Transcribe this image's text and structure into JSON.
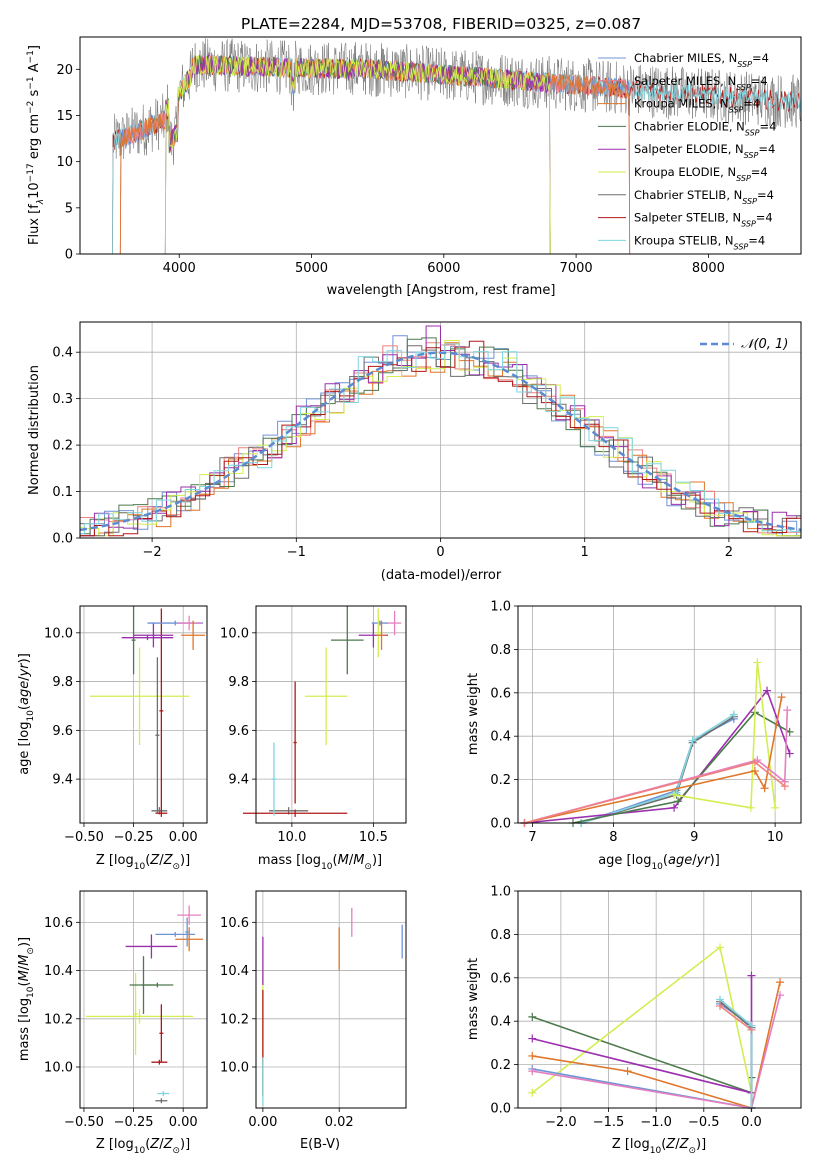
{
  "page_title": "PLATE=2284, MJD=53708, FIBERID=0325, z=0.087",
  "colors": {
    "chabrier_miles": "#6f94d6",
    "salpeter_miles": "#f07f7f",
    "kroupa_miles": "#e0762a",
    "chabrier_elodie": "#4d7a4d",
    "salpeter_elodie": "#9b2fae",
    "kroupa_elodie": "#d2ee50",
    "chabrier_stelib": "#6e6e6e",
    "salpeter_stelib": "#b01818",
    "kroupa_stelib": "#7fd6e0",
    "pink": "#e57fbf",
    "normal": "#5b8bd0"
  },
  "chart_data": [
    {
      "id": "spectrum",
      "type": "line",
      "title": "PLATE=2284, MJD=53708, FIBERID=0325, z=0.087",
      "xlabel": "wavelength [Angstrom, rest frame]",
      "ylabel": "Flux [f_λ 10^-17 erg cm^-2 s^-1 A^-1]",
      "xlim": [
        3250,
        8700
      ],
      "ylim": [
        0,
        23.5
      ],
      "xticks": [
        "4000",
        "5000",
        "6000",
        "7000",
        "8000"
      ],
      "yticks": [
        "0",
        "5",
        "10",
        "15",
        "20"
      ],
      "data_range": [
        3500,
        8700
      ],
      "series": [
        {
          "name": "Chabrier MILES, N_SSP=4",
          "range": [
            3560,
            7400
          ]
        },
        {
          "name": "Salpeter MILES, N_SSP=4",
          "range": [
            3560,
            7400
          ]
        },
        {
          "name": "Kroupa MILES, N_SSP=4",
          "range": [
            3560,
            7400
          ]
        },
        {
          "name": "Chabrier ELODIE, N_SSP=4",
          "range": [
            3900,
            6800
          ]
        },
        {
          "name": "Salpeter ELODIE, N_SSP=4",
          "range": [
            3900,
            6800
          ]
        },
        {
          "name": "Kroupa ELODIE, N_SSP=4",
          "range": [
            3900,
            6800
          ]
        },
        {
          "name": "Chabrier STELIB, N_SSP=4",
          "range": [
            3500,
            8700
          ]
        },
        {
          "name": "Salpeter STELIB, N_SSP=4",
          "range": [
            3500,
            8700
          ]
        },
        {
          "name": "Kroupa STELIB, N_SSP=4",
          "range": [
            3500,
            8700
          ]
        }
      ],
      "legend_location": "upper right"
    },
    {
      "id": "residuals",
      "type": "histogram",
      "xlabel": "(data-model)/error",
      "ylabel": "Normed distribution",
      "xlim": [
        -2.5,
        2.5
      ],
      "ylim": [
        0,
        0.465
      ],
      "xticks": [
        "−2",
        "−1",
        "0",
        "1",
        "2"
      ],
      "yticks": [
        "0.0",
        "0.1",
        "0.2",
        "0.3",
        "0.4"
      ],
      "bin_width": 0.1,
      "series_count": 9,
      "reference_curve": {
        "name": "𝒩(0, 1)",
        "mean": 0,
        "sigma": 1
      },
      "legend_location": "upper right",
      "grid": true
    },
    {
      "id": "age_vs_Z",
      "type": "errorbar",
      "xlabel": "Z [log10(Z/Z⊙)]",
      "ylabel": "age [log10(age/yr)]",
      "xlim": [
        -0.52,
        0.12
      ],
      "ylim": [
        9.22,
        10.11
      ],
      "xticks": [
        "−0.50",
        "−0.25",
        "0.00"
      ],
      "yticks": [
        "9.4",
        "9.6",
        "9.8",
        "10.0"
      ],
      "points": [
        {
          "x": -0.22,
          "y": 9.74,
          "xerr": 0.25,
          "yerr": 0.2,
          "color": "kroupa_elodie"
        },
        {
          "x": -0.12,
          "y": 9.27,
          "xerr": 0.04,
          "yerr": 0.015,
          "color": "chabrier_stelib"
        },
        {
          "x": -0.11,
          "y": 9.26,
          "xerr": 0.03,
          "yerr": 0.015,
          "color": "salpeter_stelib"
        },
        {
          "x": -0.13,
          "y": 9.58,
          "xerr": 0.01,
          "yerr": 0.32,
          "color": "chabrier_stelib"
        },
        {
          "x": -0.11,
          "y": 9.68,
          "xerr": 0.01,
          "yerr": 0.42,
          "color": "salpeter_stelib"
        },
        {
          "x": -0.25,
          "y": 9.97,
          "xerr": 0.01,
          "yerr": 0.14,
          "color": "chabrier_elodie"
        },
        {
          "x": -0.18,
          "y": 9.98,
          "xerr": 0.13,
          "yerr": 0.01,
          "color": "salpeter_elodie"
        },
        {
          "x": -0.15,
          "y": 9.99,
          "xerr": 0.1,
          "yerr": 0.05,
          "color": "salpeter_elodie"
        },
        {
          "x": -0.04,
          "y": 10.04,
          "xerr": 0.14,
          "yerr": 0.01,
          "color": "chabrier_miles"
        },
        {
          "x": 0.03,
          "y": 10.04,
          "xerr": 0.06,
          "yerr": 0.03,
          "color": "pink"
        },
        {
          "x": 0.05,
          "y": 9.99,
          "xerr": 0.06,
          "yerr": 0.06,
          "color": "kroupa_miles"
        }
      ]
    },
    {
      "id": "age_vs_mass",
      "type": "errorbar",
      "xlabel": "mass [log10(M/M⊙)]",
      "ylabel": "",
      "xlim": [
        9.78,
        10.7
      ],
      "ylim": [
        9.22,
        10.11
      ],
      "xticks": [
        "10.0",
        "10.5"
      ],
      "yticks": [
        "9.4",
        "9.6",
        "9.8",
        "10.0"
      ],
      "points": [
        {
          "x": 10.21,
          "y": 9.74,
          "xerr": 0.13,
          "yerr": 0.2,
          "color": "kroupa_elodie"
        },
        {
          "x": 9.98,
          "y": 9.27,
          "xerr": 0.12,
          "yerr": 0.015,
          "color": "chabrier_stelib"
        },
        {
          "x": 10.02,
          "y": 9.26,
          "xerr": 0.32,
          "yerr": 0.015,
          "color": "salpeter_stelib"
        },
        {
          "x": 9.89,
          "y": 9.4,
          "xerr": 0.015,
          "yerr": 0.15,
          "color": "kroupa_stelib"
        },
        {
          "x": 10.02,
          "y": 9.55,
          "xerr": 0.01,
          "yerr": 0.25,
          "color": "salpeter_stelib"
        },
        {
          "x": 10.34,
          "y": 9.97,
          "xerr": 0.1,
          "yerr": 0.14,
          "color": "chabrier_elodie"
        },
        {
          "x": 10.5,
          "y": 9.99,
          "xerr": 0.09,
          "yerr": 0.05,
          "color": "salpeter_elodie"
        },
        {
          "x": 10.54,
          "y": 10.04,
          "xerr": 0.05,
          "yerr": 0.01,
          "color": "chabrier_miles"
        },
        {
          "x": 10.53,
          "y": 10.0,
          "xerr": 0.02,
          "yerr": 0.1,
          "color": "kroupa_elodie"
        },
        {
          "x": 10.55,
          "y": 9.99,
          "xerr": 0.03,
          "yerr": 0.06,
          "color": "kroupa_miles"
        },
        {
          "x": 10.63,
          "y": 10.04,
          "xerr": 0.04,
          "yerr": 0.05,
          "color": "pink"
        }
      ]
    },
    {
      "id": "weight_vs_age",
      "type": "line",
      "xlabel": "age [log10(age/yr)]",
      "ylabel": "mass weight",
      "xlim": [
        6.82,
        10.32
      ],
      "ylim": [
        0,
        1
      ],
      "xticks": [
        "7",
        "8",
        "9",
        "10"
      ],
      "yticks": [
        "0.0",
        "0.2",
        "0.4",
        "0.6",
        "0.8",
        "1.0"
      ],
      "series": [
        {
          "color": "chabrier_miles",
          "x": [
            7.6,
            8.78,
            8.98,
            9.49
          ],
          "y": [
            0,
            0.15,
            0.38,
            0.48
          ]
        },
        {
          "color": "chabrier_stelib",
          "x": [
            7.6,
            8.78,
            8.98,
            9.49
          ],
          "y": [
            0,
            0.13,
            0.37,
            0.49
          ]
        },
        {
          "color": "kroupa_stelib",
          "x": [
            7.6,
            8.78,
            8.98,
            9.49
          ],
          "y": [
            0,
            0.14,
            0.38,
            0.5
          ]
        },
        {
          "color": "salpeter_elodie",
          "x": [
            6.9,
            8.75,
            9.9,
            10.18
          ],
          "y": [
            0,
            0.07,
            0.61,
            0.32
          ]
        },
        {
          "color": "chabrier_elodie",
          "x": [
            7.5,
            8.8,
            9.75,
            10.18
          ],
          "y": [
            0,
            0.1,
            0.51,
            0.42
          ]
        },
        {
          "color": "kroupa_elodie",
          "x": [
            8.75,
            9.7,
            9.78,
            10.0
          ],
          "y": [
            0.13,
            0.07,
            0.74,
            0.07
          ]
        },
        {
          "color": "kroupa_miles",
          "x": [
            6.9,
            9.75,
            9.87,
            10.08
          ],
          "y": [
            0,
            0.24,
            0.16,
            0.58
          ]
        },
        {
          "color": "pink",
          "x": [
            6.9,
            9.78,
            10.12,
            10.15
          ],
          "y": [
            0,
            0.29,
            0.19,
            0.52
          ]
        },
        {
          "color": "salpeter_miles",
          "x": [
            6.9,
            9.75,
            10.12
          ],
          "y": [
            0,
            0.28,
            0.17
          ]
        }
      ]
    },
    {
      "id": "mass_vs_Z",
      "type": "errorbar",
      "xlabel": "Z [log10(Z/Z⊙)]",
      "ylabel": "mass [log10(M/M⊙)]",
      "xlim": [
        -0.52,
        0.12
      ],
      "ylim": [
        9.83,
        10.73
      ],
      "xticks": [
        "−0.50",
        "−0.25",
        "0.00"
      ],
      "yticks": [
        "10.0",
        "10.2",
        "10.4",
        "10.6"
      ],
      "points": [
        {
          "x": -0.22,
          "y": 10.21,
          "xerr": 0.27,
          "yerr": 0.03,
          "color": "kroupa_elodie"
        },
        {
          "x": -0.24,
          "y": 10.22,
          "xerr": 0.01,
          "yerr": 0.17,
          "color": "kroupa_elodie"
        },
        {
          "x": -0.2,
          "y": 10.34,
          "xerr": 0.07,
          "yerr": 0.12,
          "color": "chabrier_elodie"
        },
        {
          "x": -0.13,
          "y": 10.34,
          "xerr": 0.08,
          "yerr": 0.01,
          "color": "chabrier_elodie"
        },
        {
          "x": -0.12,
          "y": 10.02,
          "xerr": 0.04,
          "yerr": 0.01,
          "color": "salpeter_stelib"
        },
        {
          "x": -0.11,
          "y": 10.14,
          "xerr": 0.01,
          "yerr": 0.12,
          "color": "salpeter_stelib"
        },
        {
          "x": -0.11,
          "y": 9.86,
          "xerr": 0.03,
          "yerr": 0.01,
          "color": "chabrier_stelib"
        },
        {
          "x": -0.1,
          "y": 9.89,
          "xerr": 0.03,
          "yerr": 0.01,
          "color": "kroupa_stelib"
        },
        {
          "x": -0.16,
          "y": 10.5,
          "xerr": 0.13,
          "yerr": 0.05,
          "color": "salpeter_elodie"
        },
        {
          "x": -0.04,
          "y": 10.55,
          "xerr": 0.1,
          "yerr": 0.01,
          "color": "chabrier_miles"
        },
        {
          "x": 0.03,
          "y": 10.53,
          "xerr": 0.07,
          "yerr": 0.05,
          "color": "kroupa_miles"
        },
        {
          "x": 0.02,
          "y": 10.56,
          "xerr": 0.01,
          "yerr": 0.06,
          "color": "chabrier_miles"
        },
        {
          "x": 0.03,
          "y": 10.63,
          "xerr": 0.06,
          "yerr": 0.04,
          "color": "pink"
        }
      ]
    },
    {
      "id": "mass_vs_ebv",
      "type": "errorbar",
      "xlabel": "E(B-V)",
      "ylabel": "",
      "xlim": [
        -0.0018,
        0.0375
      ],
      "ylim": [
        9.83,
        10.73
      ],
      "xticks": [
        "0.00",
        "0.02"
      ],
      "yticks": [
        "10.0",
        "10.2",
        "10.4",
        "10.6"
      ],
      "points": [
        {
          "x": 0.0,
          "y": 10.2,
          "xerr": 0,
          "yerr": 0.2,
          "color": "kroupa_elodie"
        },
        {
          "x": 0.0,
          "y": 10.1,
          "xerr": 0,
          "yerr": 0.22,
          "color": "salpeter_stelib"
        },
        {
          "x": 0.0,
          "y": 10.44,
          "xerr": 0,
          "yerr": 0.1,
          "color": "salpeter_elodie"
        },
        {
          "x": 0.0,
          "y": 9.94,
          "xerr": 0,
          "yerr": 0.1,
          "color": "kroupa_stelib"
        },
        {
          "x": 0.02,
          "y": 10.49,
          "xerr": 0,
          "yerr": 0.09,
          "color": "kroupa_miles"
        },
        {
          "x": 0.0233,
          "y": 10.6,
          "xerr": 0,
          "yerr": 0.06,
          "color": "pink"
        },
        {
          "x": 0.0365,
          "y": 10.52,
          "xerr": 0,
          "yerr": 0.07,
          "color": "chabrier_miles"
        }
      ]
    },
    {
      "id": "weight_vs_Z",
      "type": "line",
      "xlabel": "Z [log10(Z/Z⊙)]",
      "ylabel": "mass weight",
      "xlim": [
        -2.45,
        0.52
      ],
      "ylim": [
        0,
        1
      ],
      "xticks": [
        "−2.0",
        "−1.5",
        "−1.0",
        "−0.5",
        "0.0"
      ],
      "yticks": [
        "0.0",
        "0.2",
        "0.4",
        "0.6",
        "0.8",
        "1.0"
      ],
      "series": [
        {
          "color": "chabrier_elodie",
          "x": [
            -2.3,
            0.0,
            0.0
          ],
          "y": [
            0.42,
            0.07,
            0.14
          ]
        },
        {
          "color": "kroupa_elodie",
          "x": [
            -2.3,
            -0.33,
            0.0,
            0.0
          ],
          "y": [
            0.07,
            0.74,
            0.07,
            0.07
          ]
        },
        {
          "color": "salpeter_elodie",
          "x": [
            -2.3,
            0.0,
            0.0
          ],
          "y": [
            0.32,
            0.07,
            0.61
          ]
        },
        {
          "color": "kroupa_miles",
          "x": [
            -2.3,
            -1.3,
            0.0,
            0.3
          ],
          "y": [
            0.24,
            0.17,
            0.0,
            0.58
          ]
        },
        {
          "color": "chabrier_miles",
          "x": [
            -2.3,
            0.0,
            0.0,
            -0.33
          ],
          "y": [
            0.18,
            0.0,
            0.38,
            0.48
          ]
        },
        {
          "color": "pink",
          "x": [
            -2.3,
            0.0,
            0.3
          ],
          "y": [
            0.17,
            0.0,
            0.52
          ]
        },
        {
          "color": "chabrier_stelib",
          "x": [
            -0.33,
            0.0,
            0.0
          ],
          "y": [
            0.49,
            0.37,
            0.0
          ]
        },
        {
          "color": "kroupa_stelib",
          "x": [
            -0.33,
            0.0,
            0.0
          ],
          "y": [
            0.5,
            0.38,
            0.0
          ]
        },
        {
          "color": "salpeter_miles",
          "x": [
            -0.33,
            0.0
          ],
          "y": [
            0.47,
            0.36
          ]
        }
      ]
    }
  ]
}
